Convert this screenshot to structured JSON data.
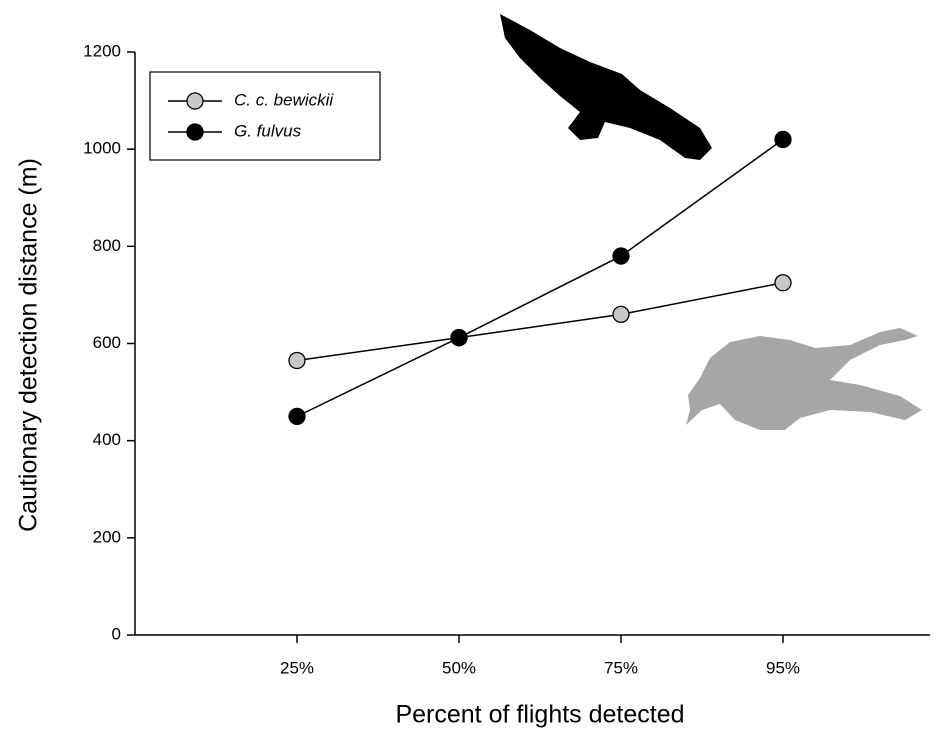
{
  "chart_data": {
    "type": "line",
    "x_label": "Percent of flights detected",
    "y_label": "Cautionary detection distance (m)",
    "categories": [
      "25%",
      "50%",
      "75%",
      "95%"
    ],
    "series": [
      {
        "name": "C. c. bewickii",
        "color": "#c8c8c8",
        "values": [
          565,
          612,
          660,
          725
        ]
      },
      {
        "name": "G. fulvus",
        "color": "#000000",
        "values": [
          450,
          612,
          780,
          1020
        ]
      }
    ],
    "ylim": [
      0,
      1200
    ],
    "yticks": [
      0,
      200,
      400,
      600,
      800,
      1000,
      1200
    ],
    "grid": false,
    "legend": "upper left"
  }
}
